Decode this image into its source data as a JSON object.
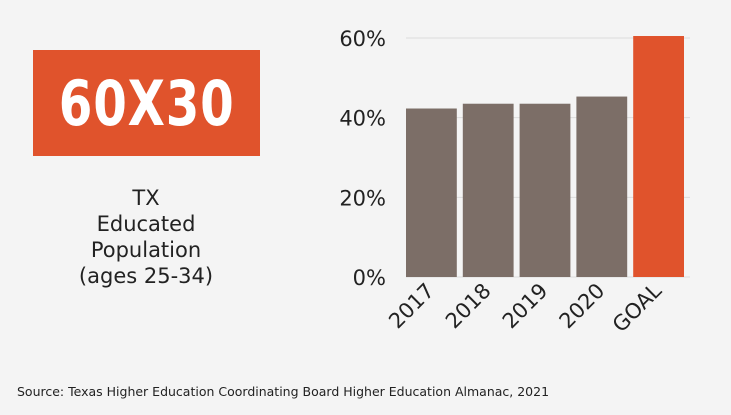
{
  "badge": {
    "text": "60X30"
  },
  "caption": {
    "lines": [
      "TX",
      "Educated",
      "Population",
      "(ages 25-34)"
    ]
  },
  "source": "Source: Texas Higher Education Coordinating Board Higher Education Almanac, 2021",
  "colors": {
    "bar": "#7c6e67",
    "goal": "#e0532c",
    "badge": "#e0532c",
    "grid": "#dcdcdc"
  },
  "chart_data": {
    "type": "bar",
    "categories": [
      "2017",
      "2018",
      "2019",
      "2020",
      "GOAL"
    ],
    "values": [
      42.3,
      43.5,
      43.5,
      45.3,
      60.5
    ],
    "ylim": [
      0,
      60
    ],
    "yticks": [
      0,
      20,
      40,
      60
    ],
    "ytick_labels": [
      "0%",
      "20%",
      "40%",
      "60%"
    ],
    "title": "",
    "xlabel": "",
    "ylabel": "",
    "grid": true,
    "highlight_category": "GOAL"
  }
}
